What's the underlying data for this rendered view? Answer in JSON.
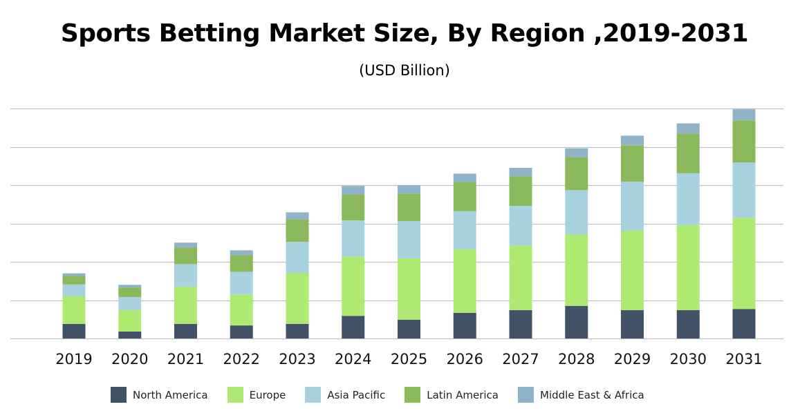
{
  "chart_data": {
    "type": "bar",
    "stacked": true,
    "title": "Sports Betting Market Size, By Region ,2019-2031",
    "subtitle": "(USD Billion)",
    "xlabel": "",
    "ylabel": "",
    "ylim": [
      0,
      60
    ],
    "grid": true,
    "y_tick_labels_shown": false,
    "legend_position": "bottom",
    "categories": [
      "2019",
      "2020",
      "2021",
      "2022",
      "2023",
      "2024",
      "2025",
      "2026",
      "2027",
      "2028",
      "2029",
      "2030",
      "2031"
    ],
    "series": [
      {
        "name": "North America",
        "color": "#415168",
        "values": [
          3.8,
          1.8,
          3.8,
          3.4,
          3.8,
          5.9,
          4.9,
          6.7,
          7.4,
          8.5,
          7.4,
          7.4,
          7.7
        ]
      },
      {
        "name": "Europe",
        "color": "#aee972",
        "values": [
          7.2,
          5.6,
          9.7,
          8.1,
          13.3,
          15.5,
          16.0,
          16.6,
          16.9,
          18.7,
          20.7,
          22.2,
          23.8
        ]
      },
      {
        "name": "Asia Pacific",
        "color": "#a8d2e0",
        "values": [
          3.1,
          3.4,
          5.9,
          5.9,
          8.1,
          9.4,
          9.7,
          9.9,
          10.3,
          11.5,
          12.8,
          13.5,
          14.4
        ]
      },
      {
        "name": "Latin America",
        "color": "#8ab85a",
        "values": [
          2.2,
          2.5,
          4.3,
          4.3,
          5.9,
          6.8,
          7.2,
          7.6,
          7.7,
          8.6,
          9.5,
          10.3,
          11.0
        ]
      },
      {
        "name": "Middle East & Africa",
        "color": "#8fb3c8",
        "values": [
          0.7,
          0.7,
          1.3,
          1.3,
          1.8,
          2.2,
          2.2,
          2.2,
          2.2,
          2.3,
          2.5,
          2.7,
          2.9
        ]
      }
    ]
  }
}
